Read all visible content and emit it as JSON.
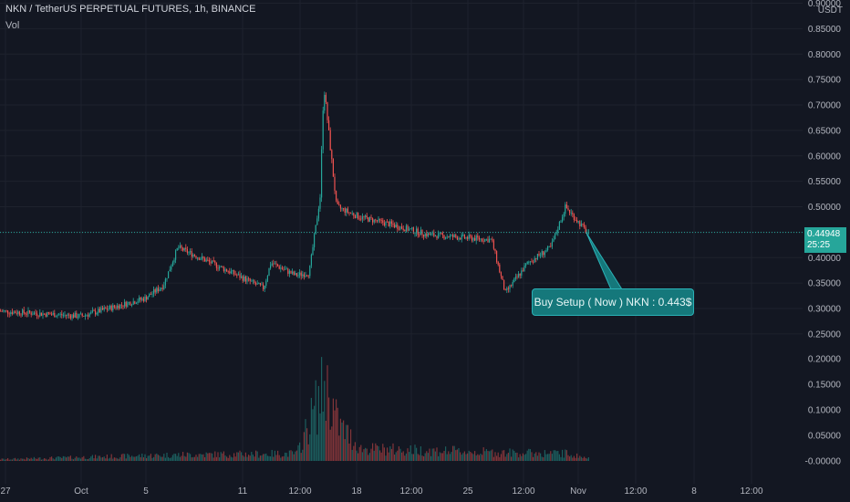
{
  "header": {
    "symbol_line": "NKN / TetherUS PERPETUAL FUTURES, 1h, BINANCE",
    "vol_label": "Vol",
    "currency_unit": "USDT"
  },
  "colors": {
    "background": "#131722",
    "up": "#26a69a",
    "down": "#ef5350",
    "grid": "#1e222d",
    "axis_text": "#b2b5be"
  },
  "price_tag": {
    "price": "0.44948",
    "countdown": "25:25"
  },
  "annotation": {
    "text": "Buy Setup ( Now ) NKN : 0.443$"
  },
  "chart_data": [
    {
      "type": "candlestick",
      "title": "NKN / TetherUS PERPETUAL FUTURES, 1h, BINANCE",
      "ylabel": "USDT",
      "ylim": [
        0.245,
        0.9
      ],
      "y_ticks": [
        "0.90000",
        "0.85000",
        "0.80000",
        "0.75000",
        "0.70000",
        "0.65000",
        "0.60000",
        "0.55000",
        "0.50000",
        "0.45000",
        "0.40000",
        "0.35000",
        "0.30000",
        "0.25000"
      ],
      "x_ticks": [
        "27",
        "Oct",
        "5",
        "11",
        "12:00",
        "18",
        "12:00",
        "25",
        "12:00",
        "Nov",
        "12:00",
        "8",
        "12:00"
      ],
      "last_price": 0.44948,
      "grid": true,
      "path_keypoints": [
        {
          "x": "27",
          "y": 0.295
        },
        {
          "x": "Oct",
          "y": 0.285
        },
        {
          "x": "5",
          "y": 0.32
        },
        {
          "x": "5-6",
          "y": 0.345
        },
        {
          "x": "6",
          "y": 0.42
        },
        {
          "x": "6-11",
          "y": 0.375
        },
        {
          "x": "11",
          "y": 0.34
        },
        {
          "x": "11-12:00",
          "y": 0.39
        },
        {
          "x": "12:00",
          "y": 0.365
        },
        {
          "x": "13",
          "y": 0.37
        },
        {
          "x": "14",
          "y": 0.52
        },
        {
          "x": "14 peak",
          "y": 0.74
        },
        {
          "x": "15",
          "y": 0.5
        },
        {
          "x": "18",
          "y": 0.48
        },
        {
          "x": "18-12:00",
          "y": 0.465
        },
        {
          "x": "12:00",
          "y": 0.445
        },
        {
          "x": "25",
          "y": 0.435
        },
        {
          "x": "25 low",
          "y": 0.33
        },
        {
          "x": "12:00",
          "y": 0.39
        },
        {
          "x": "29",
          "y": 0.42
        },
        {
          "x": "30 peak",
          "y": 0.5
        },
        {
          "x": "Nov",
          "y": 0.449
        }
      ]
    },
    {
      "type": "bar",
      "name": "Vol",
      "ylim": [
        -0.015,
        0.2
      ],
      "y_ticks": [
        "0.20000",
        "0.15000",
        "0.10000",
        "0.05000",
        "-0.00000"
      ],
      "volume_keypoints": [
        {
          "x": "27",
          "y": 0.004
        },
        {
          "x": "6",
          "y": 0.015
        },
        {
          "x": "12:00",
          "y": 0.018
        },
        {
          "x": "14 peak",
          "y": 0.19
        },
        {
          "x": "15",
          "y": 0.09
        },
        {
          "x": "18",
          "y": 0.03
        },
        {
          "x": "25 low",
          "y": 0.02
        },
        {
          "x": "30 peak",
          "y": 0.018
        },
        {
          "x": "Nov",
          "y": 0.006
        }
      ]
    }
  ]
}
